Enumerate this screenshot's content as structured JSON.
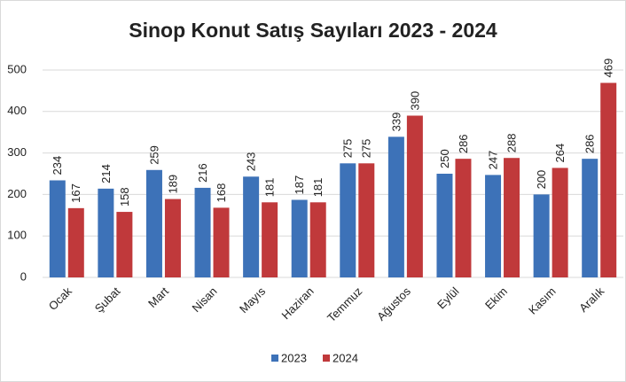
{
  "chart_data": {
    "type": "bar",
    "title": "Sinop Konut Satış Sayıları  2023 - 2024",
    "categories": [
      "Ocak",
      "Şubat",
      "Mart",
      "Nisan",
      "Mayıs",
      "Haziran",
      "Temmuz",
      "Ağustos",
      "Eylül",
      "Ekim",
      "Kasım",
      "Aralık"
    ],
    "series": [
      {
        "name": "2023",
        "color": "#3d72b8",
        "values": [
          234,
          214,
          259,
          216,
          243,
          187,
          275,
          339,
          250,
          247,
          200,
          286
        ]
      },
      {
        "name": "2024",
        "color": "#c0393b",
        "values": [
          167,
          158,
          189,
          168,
          181,
          181,
          275,
          390,
          286,
          288,
          264,
          469
        ]
      }
    ],
    "ylim": [
      0,
      500
    ],
    "yticks": [
      0,
      100,
      200,
      300,
      400,
      500
    ],
    "grid": true
  }
}
